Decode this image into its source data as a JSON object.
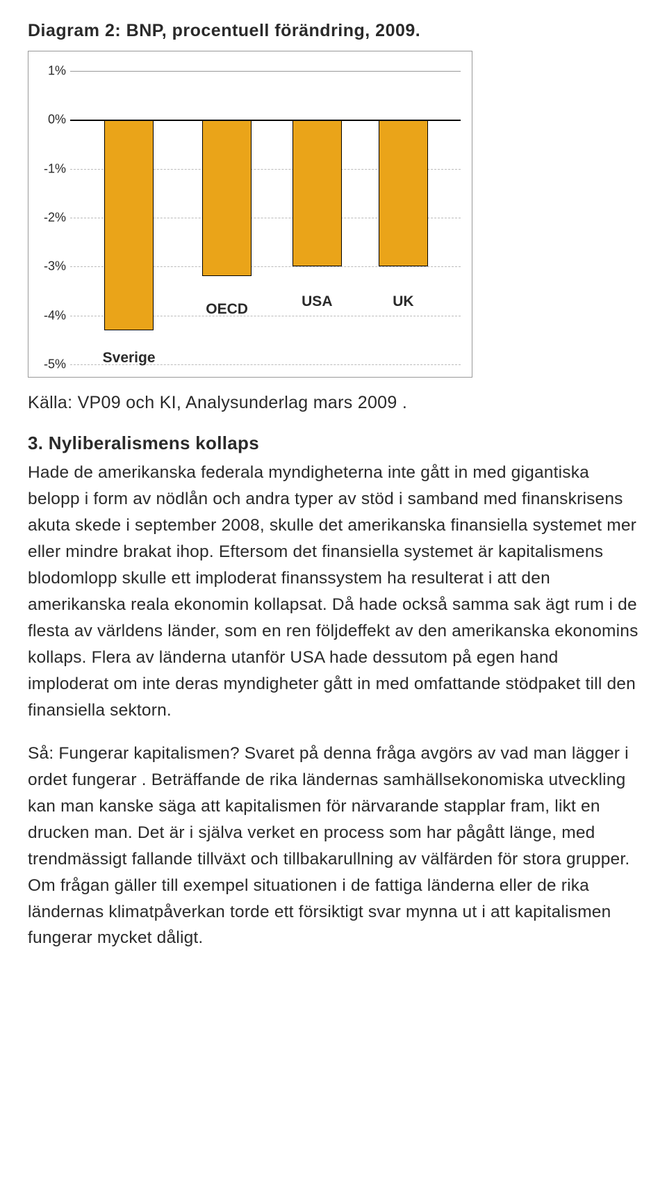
{
  "diagram": {
    "title": "Diagram 2: BNP, procentuell förändring, 2009.",
    "chart": {
      "type": "bar",
      "ylim_min": -5,
      "ylim_max": 1,
      "y_ticks": [
        1,
        0,
        -1,
        -2,
        -3,
        -4,
        -5
      ],
      "y_tick_labels": [
        "1%",
        "0%",
        "-1%",
        "-2%",
        "-3%",
        "-4%",
        "-5%"
      ],
      "grid_color": "#bbbbbb",
      "zero_line_color": "#000000",
      "border_color": "#999999",
      "bar_color": "#eaa419",
      "bar_border_color": "#000000",
      "bar_width_pct": 12.5,
      "series": [
        {
          "category": "Sverige",
          "value": -4.3,
          "x_center_pct": 15,
          "label_y_tick": -4.7
        },
        {
          "category": "OECD",
          "value": -3.2,
          "x_center_pct": 40,
          "label_y_tick": -3.7
        },
        {
          "category": "USA",
          "value": -3.0,
          "x_center_pct": 63,
          "label_y_tick": -3.55
        },
        {
          "category": "UK",
          "value": -3.0,
          "x_center_pct": 85,
          "label_y_tick": -3.55
        }
      ],
      "label_fontsize": 21,
      "tick_fontsize": 18
    },
    "source": "Källa: VP09 och KI,  Analysunderlag mars 2009 ."
  },
  "section": {
    "heading": "3. Nyliberalismens kollaps",
    "para1": "Hade de amerikanska federala myndigheterna inte gått in med gigantiska belopp i form av nödlån och andra typer av stöd i samband med finanskrisens akuta skede i september 2008, skulle det amerikanska finansiella systemet mer eller mindre brakat ihop. Eftersom det finansiella systemet är kapitalismens blodomlopp skulle ett imploderat finanssystem ha resulterat i att den amerikanska reala ekonomin kollapsat. Då hade också samma sak ägt rum i de flesta av världens länder, som en ren följdeffekt av den amerikanska ekonomins kollaps. Flera av länderna utanför USA hade dessutom på egen hand imploderat om inte deras myndigheter gått in med omfattande stödpaket till den finansiella sektorn.",
    "para2": "Så: Fungerar kapitalismen? Svaret på denna fråga avgörs av vad man lägger i ordet  fungerar . Beträffande de rika ländernas samhällsekonomiska utveckling kan man kanske säga att kapitalismen för närvarande stapplar fram, likt en drucken man. Det är i själva verket en process som har pågått länge, med trendmässigt fallande tillväxt och tillbakarullning av välfärden för stora grupper. Om frågan gäller till exempel situationen i de fattiga länderna eller de rika ländernas klimatpåverkan torde ett försiktigt svar mynna ut i att kapitalismen fungerar mycket dåligt."
  }
}
